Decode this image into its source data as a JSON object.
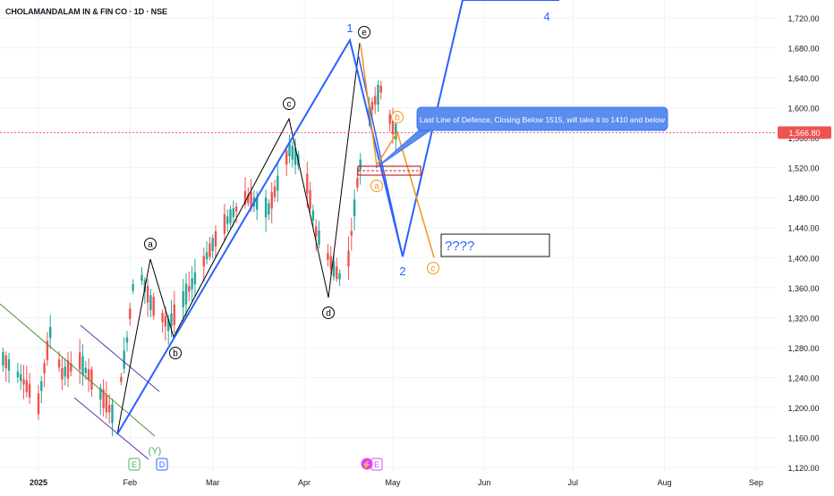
{
  "chart_data": {
    "type": "candlestick",
    "title": "CHOLAMANDALAM IN & FIN CO · 1D · NSE",
    "ylim": [
      1100,
      1750
    ],
    "y_ticks": [
      "1,720.00",
      "1,680.00",
      "1,640.00",
      "1,600.00",
      "1,560.00",
      "1,520.00",
      "1,480.00",
      "1,440.00",
      "1,400.00",
      "1,360.00",
      "1,320.00",
      "1,280.00",
      "1,240.00",
      "1,200.00",
      "1,160.00",
      "1,120.00"
    ],
    "y_tick_values": [
      1720,
      1680,
      1640,
      1600,
      1560,
      1520,
      1480,
      1440,
      1400,
      1360,
      1320,
      1280,
      1240,
      1200,
      1160,
      1120
    ],
    "x_ticks": [
      "2025",
      "Feb",
      "Mar",
      "Apr",
      "May",
      "Jun",
      "Jul",
      "Aug",
      "Sep"
    ],
    "x_tick_days": [
      0,
      31,
      59,
      90,
      120,
      151,
      181,
      212,
      243
    ],
    "last_price": 1566.8,
    "last_price_label": "1,566.80",
    "up_color": "#26a69a",
    "down_color": "#ef5350",
    "wave_points": [
      {
        "day": 26,
        "price": 1166
      },
      {
        "day": 112,
        "price": 1690
      },
      {
        "day": 132,
        "price": 1405
      },
      {
        "day": 167,
        "price": 1750
      },
      {
        "day": 194,
        "price": 1748
      }
    ],
    "wave_labels": [
      {
        "text": "1",
        "day": 112,
        "price": 1708,
        "color": "#2962ff"
      },
      {
        "text": "2",
        "day": 130,
        "price": 1388,
        "color": "#2962ff"
      },
      {
        "text": "4",
        "day": 176,
        "price": 1731,
        "color": "#2962ff"
      }
    ],
    "circled_labels": [
      {
        "text": "a",
        "day": 35,
        "price": 1409,
        "color": "#000000"
      },
      {
        "text": "b",
        "day": 43,
        "price": 1283,
        "color": "#000000"
      },
      {
        "text": "c",
        "day": 93,
        "price": 1602,
        "color": "#000000"
      },
      {
        "text": "d",
        "day": 106,
        "price": 1323,
        "color": "#000000"
      },
      {
        "text": "e",
        "day": 117,
        "price": 1682,
        "color": "#000000"
      },
      {
        "text": "a",
        "day": 122,
        "price": 1496,
        "color": "#f7931a"
      },
      {
        "text": "b",
        "day": 128,
        "price": 1589,
        "color": "#f7931a"
      },
      {
        "text": "c",
        "day": 141,
        "price": 1388,
        "color": "#f7931a"
      }
    ],
    "bottom_labels": [
      {
        "text": "(Y)",
        "day": 40,
        "color": "#4caf50"
      }
    ],
    "annotation": "Last Line of Defence, Closing Below 1515, will take it to 1410 and below",
    "question_box": "????",
    "event_markers": [
      "E",
      "D",
      "E"
    ]
  }
}
